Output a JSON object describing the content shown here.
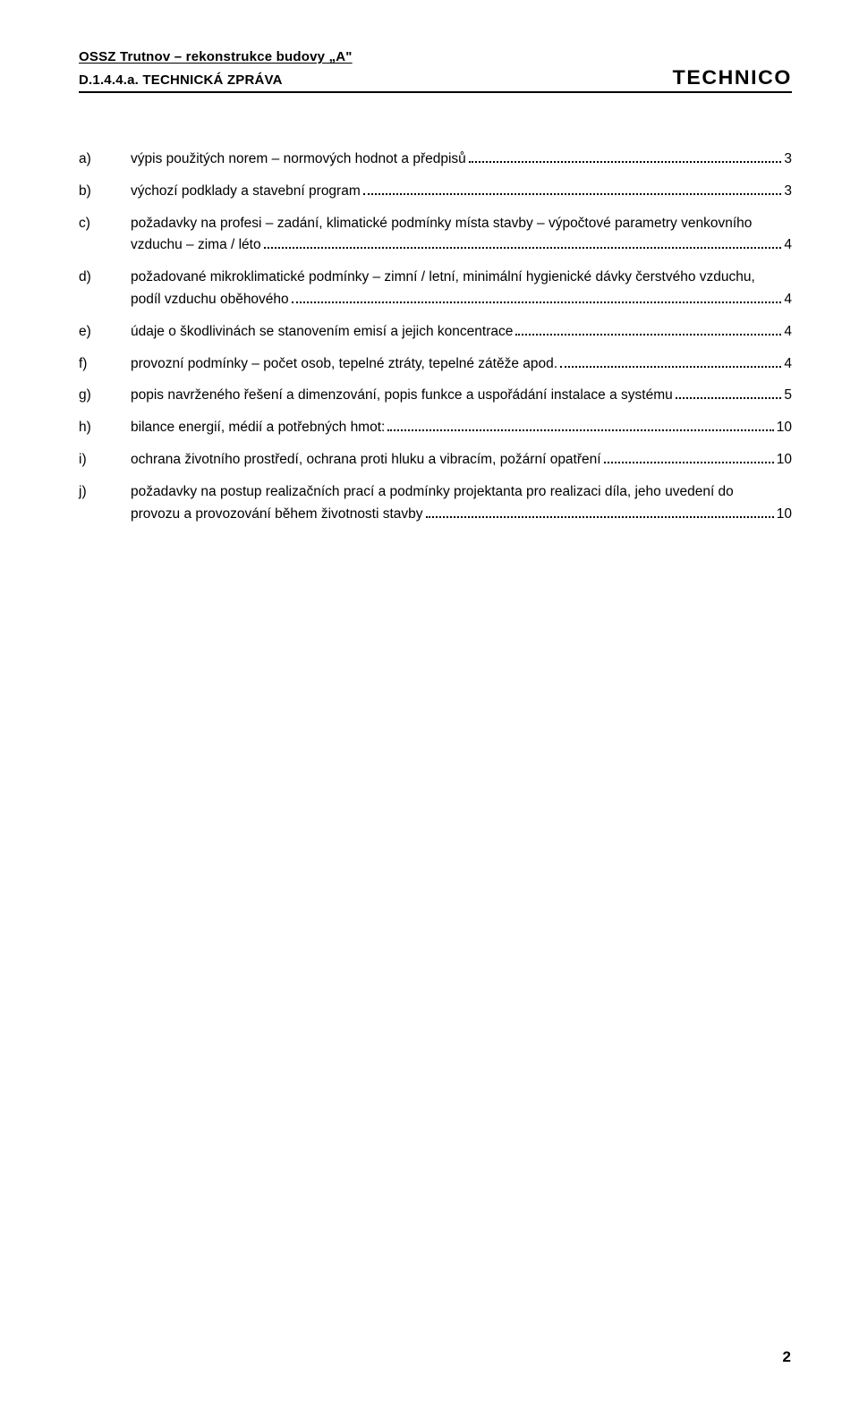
{
  "header": {
    "line1": "OSSZ Trutnov – rekonstrukce budovy „A\"",
    "line2": "D.1.4.4.a. TECHNICKÁ ZPRÁVA",
    "logo": "TECHNICO"
  },
  "toc": [
    {
      "marker": "a)",
      "text": "výpis použitých norem – normových hodnot a předpisů",
      "page": "3"
    },
    {
      "marker": "b)",
      "text": "výchozí podklady a stavební program",
      "page": "3"
    },
    {
      "marker": "c)",
      "text": "požadavky na profesi – zadání, klimatické podmínky místa stavby – výpočtové parametry venkovního",
      "cont": "vzduchu – zima / léto",
      "page": "4"
    },
    {
      "marker": "d)",
      "text": "požadované mikroklimatické podmínky – zimní / letní, minimální hygienické dávky čerstvého vzduchu,",
      "cont": "podíl vzduchu oběhového",
      "page": "4"
    },
    {
      "marker": "e)",
      "text": "údaje o škodlivinách se stanovením emisí a jejich koncentrace",
      "page": "4"
    },
    {
      "marker": "f)",
      "text": "provozní podmínky – počet osob, tepelné ztráty, tepelné zátěže apod.",
      "page": "4"
    },
    {
      "marker": "g)",
      "text": "popis navrženého řešení a dimenzování, popis funkce a uspořádání instalace a systému",
      "page": "5"
    },
    {
      "marker": "h)",
      "text": "bilance energií, médií a potřebných hmot:",
      "page": "10"
    },
    {
      "marker": "i)",
      "text": "ochrana životního prostředí, ochrana proti hluku a vibracím, požární opatření",
      "page": "10"
    },
    {
      "marker": "j)",
      "text": "požadavky na postup realizačních prací a podmínky projektanta pro realizaci díla, jeho uvedení do",
      "cont": "provozu a provozování během životnosti stavby",
      "page": "10"
    }
  ],
  "pageNumber": "2"
}
